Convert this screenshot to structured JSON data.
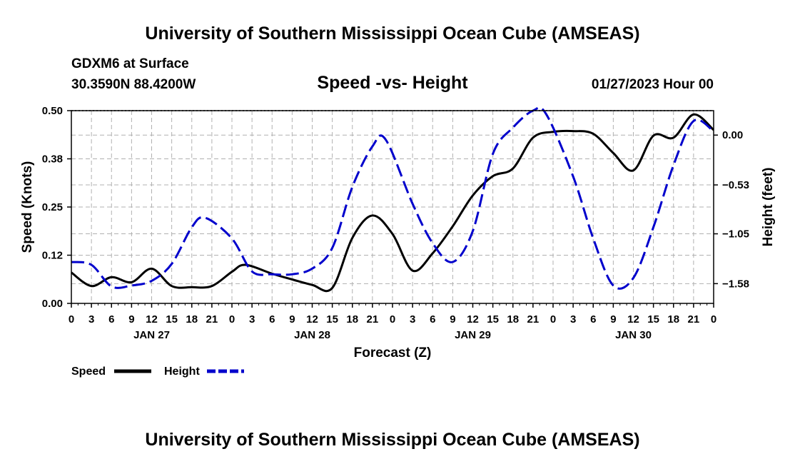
{
  "title": "University of Southern Mississippi Ocean Cube (AMSEAS)",
  "bottom_title": "University of Southern Mississippi Ocean Cube (AMSEAS)",
  "station": "GDXM6 at Surface",
  "coords": "30.3590N  88.4200W",
  "datetime": "01/27/2023 Hour 00",
  "colors": {
    "speed": "#000000",
    "height": "#0000cc",
    "grid": "#b0b0b0"
  },
  "chart_data": {
    "type": "line",
    "title": "Speed -vs- Height",
    "xlabel": "Forecast (Z)",
    "ylabel": "Speed (Knots)",
    "y2label": "Height (feet)",
    "x_unit": "hours since 01/27/2023 00Z",
    "xlim": [
      0,
      96
    ],
    "ylim": [
      0,
      0.5
    ],
    "y2lim": [
      -1.79,
      0.26
    ],
    "yticks": [
      0,
      0.125,
      0.25,
      0.375,
      0.5
    ],
    "yticklabels": [
      "0.00",
      "0.12",
      "0.25",
      "0.38",
      "0.50"
    ],
    "y2ticks": [
      -1.58,
      -1.05,
      -0.53,
      0.0
    ],
    "y2ticklabels": [
      "−1.58",
      "−1.05",
      "−0.53",
      "0.00"
    ],
    "xticks": [
      0,
      3,
      6,
      9,
      12,
      15,
      18,
      21,
      24,
      27,
      30,
      33,
      36,
      39,
      42,
      45,
      48,
      51,
      54,
      57,
      60,
      63,
      66,
      69,
      72,
      75,
      78,
      81,
      84,
      87,
      90,
      93,
      96
    ],
    "xticklabels": [
      "0",
      "3",
      "6",
      "9",
      "12",
      "15",
      "18",
      "21",
      "0",
      "3",
      "6",
      "9",
      "12",
      "15",
      "18",
      "21",
      "0",
      "3",
      "6",
      "9",
      "12",
      "15",
      "18",
      "21",
      "0",
      "3",
      "6",
      "9",
      "12",
      "15",
      "18",
      "21",
      "0"
    ],
    "day_labels": [
      {
        "x": 12,
        "label": "JAN 27"
      },
      {
        "x": 36,
        "label": "JAN 28"
      },
      {
        "x": 60,
        "label": "JAN 29"
      },
      {
        "x": 84,
        "label": "JAN 30"
      }
    ],
    "legend": [
      {
        "name": "Speed",
        "style": "solid"
      },
      {
        "name": "Height",
        "style": "dashed"
      }
    ],
    "series": [
      {
        "name": "Speed",
        "axis": "left",
        "style": "solid",
        "x": [
          0,
          3,
          6,
          9,
          12,
          15,
          18,
          21,
          24,
          26,
          30,
          33,
          36,
          39,
          42,
          45,
          48,
          51,
          54,
          57,
          60,
          63,
          66,
          69,
          72,
          75,
          78,
          81,
          84,
          87,
          90,
          93,
          96
        ],
        "y": [
          0.08,
          0.045,
          0.068,
          0.055,
          0.09,
          0.045,
          0.042,
          0.045,
          0.082,
          0.1,
          0.077,
          0.062,
          0.048,
          0.04,
          0.17,
          0.228,
          0.18,
          0.085,
          0.13,
          0.2,
          0.28,
          0.33,
          0.35,
          0.43,
          0.445,
          0.447,
          0.44,
          0.39,
          0.345,
          0.435,
          0.43,
          0.49,
          0.45
        ]
      },
      {
        "name": "Height",
        "axis": "right",
        "style": "dashed",
        "x": [
          0,
          3,
          6,
          9,
          12,
          15,
          18,
          20,
          24,
          27,
          30,
          33,
          36,
          39,
          42,
          45,
          47,
          51,
          54,
          57,
          60,
          63,
          66,
          69,
          71,
          75,
          78,
          81,
          84,
          87,
          90,
          93,
          96
        ],
        "y": [
          -1.35,
          -1.38,
          -1.61,
          -1.6,
          -1.55,
          -1.37,
          -0.98,
          -0.88,
          -1.1,
          -1.45,
          -1.48,
          -1.48,
          -1.42,
          -1.2,
          -0.55,
          -0.12,
          -0.05,
          -0.73,
          -1.15,
          -1.35,
          -1.02,
          -0.2,
          0.08,
          0.26,
          0.22,
          -0.44,
          -1.1,
          -1.6,
          -1.52,
          -0.98,
          -0.32,
          0.15,
          0.04
        ]
      }
    ]
  }
}
